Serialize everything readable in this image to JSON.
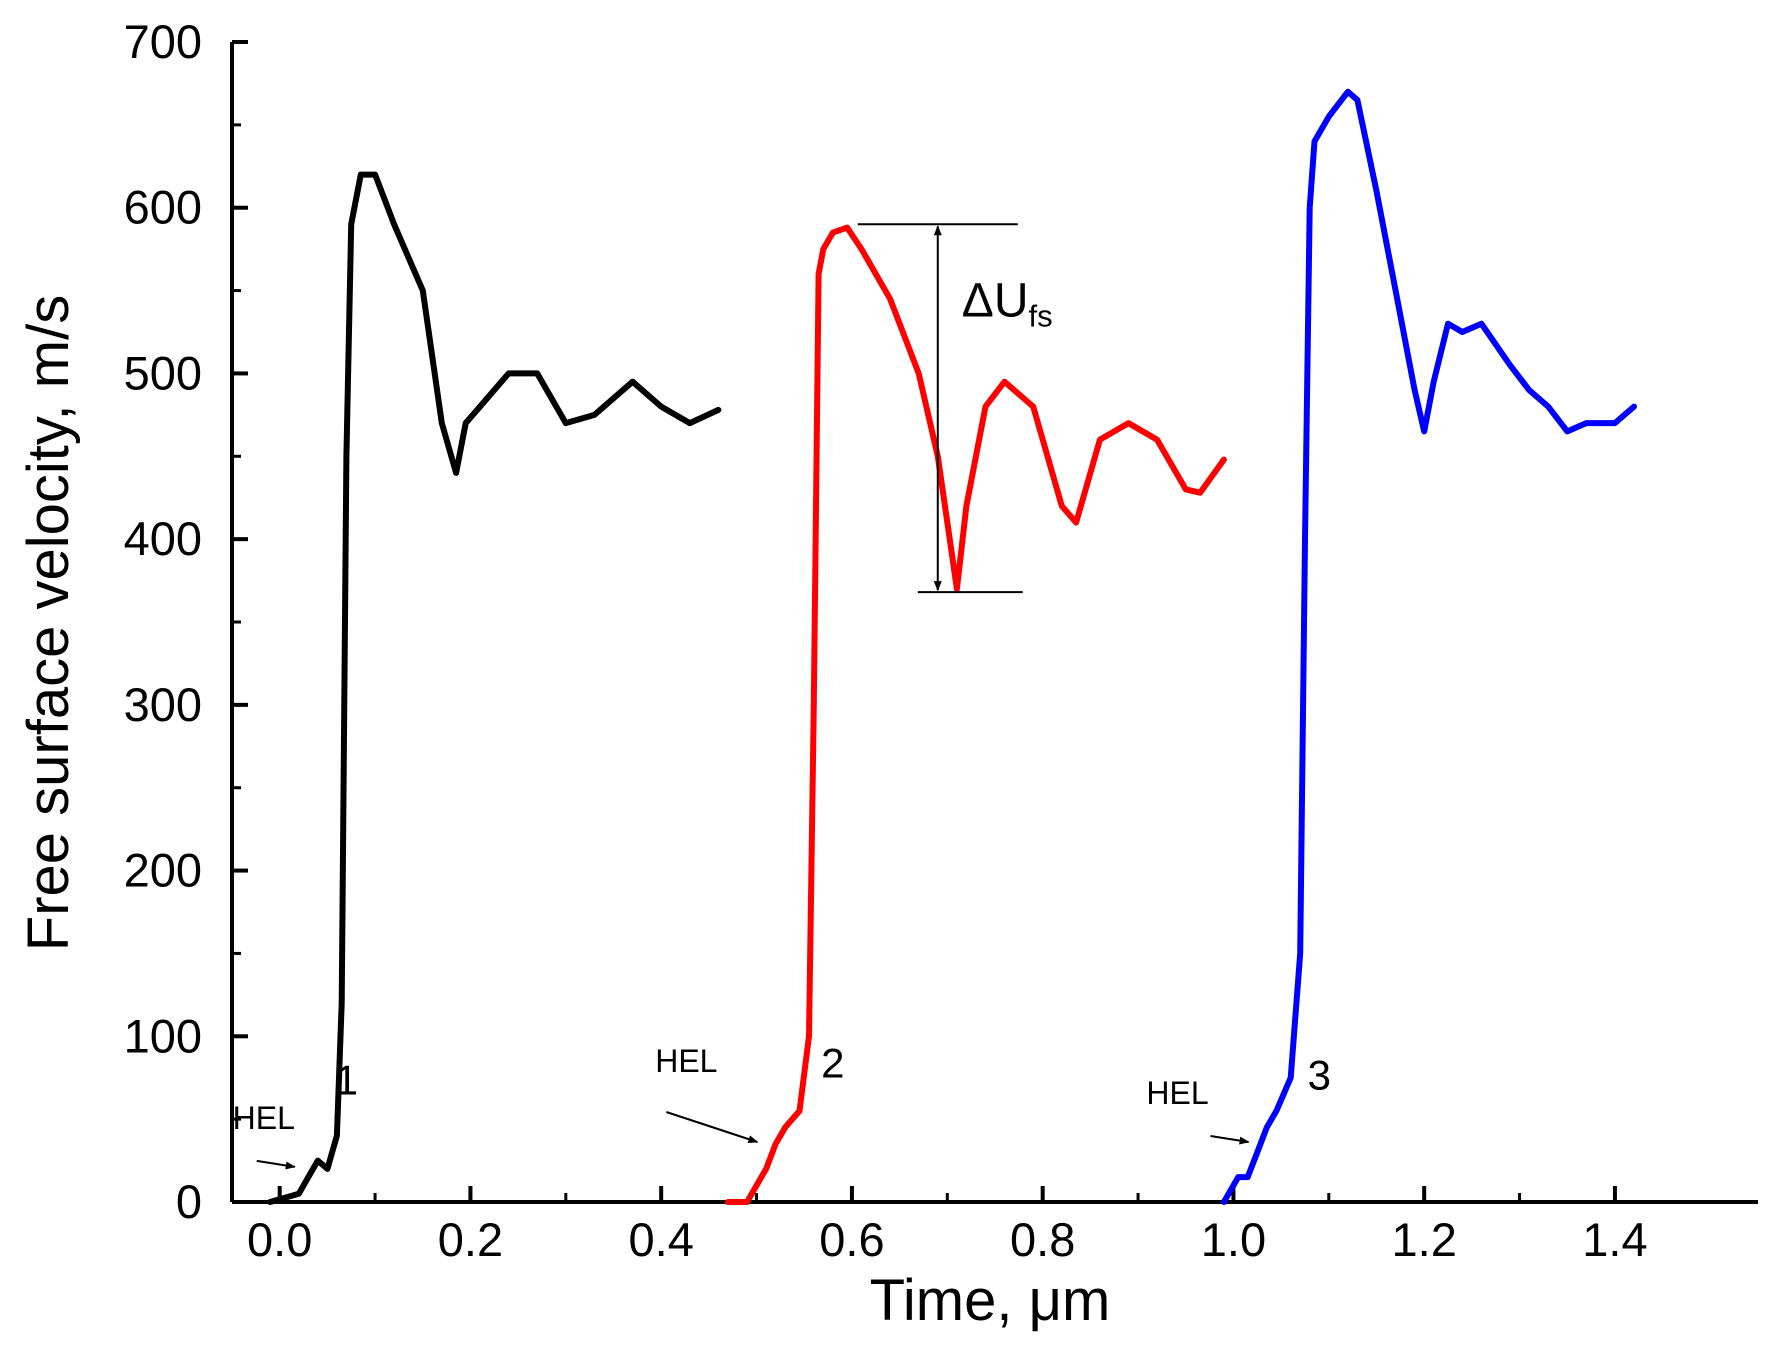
{
  "chart_data": {
    "type": "line",
    "title": "",
    "xlabel": "Time, μm",
    "ylabel": "Free surface velocity, m/s",
    "xlim": [
      -0.05,
      1.55
    ],
    "ylim": [
      0,
      700
    ],
    "xticks": [
      "0.0",
      "0.2",
      "0.4",
      "0.6",
      "0.8",
      "1.0",
      "1.2",
      "1.4"
    ],
    "xtick_values": [
      0.0,
      0.2,
      0.4,
      0.6,
      0.8,
      1.0,
      1.2,
      1.4
    ],
    "yticks": [
      "0",
      "100",
      "200",
      "300",
      "400",
      "500",
      "600",
      "700"
    ],
    "ytick_values": [
      0,
      100,
      200,
      300,
      400,
      500,
      600,
      700
    ],
    "grid": false,
    "series": [
      {
        "name": "1",
        "color": "#000000",
        "x": [
          -0.01,
          0.02,
          0.03,
          0.04,
          0.05,
          0.06,
          0.065,
          0.07,
          0.075,
          0.085,
          0.1,
          0.12,
          0.15,
          0.17,
          0.185,
          0.195,
          0.21,
          0.24,
          0.27,
          0.3,
          0.33,
          0.37,
          0.4,
          0.43,
          0.46
        ],
        "y": [
          0,
          5,
          15,
          25,
          20,
          40,
          120,
          450,
          590,
          620,
          620,
          590,
          550,
          470,
          440,
          470,
          480,
          500,
          500,
          470,
          475,
          495,
          480,
          470,
          478
        ]
      },
      {
        "name": "2",
        "color": "#ff0000",
        "x": [
          0.47,
          0.49,
          0.5,
          0.51,
          0.52,
          0.53,
          0.545,
          0.555,
          0.56,
          0.565,
          0.57,
          0.58,
          0.595,
          0.61,
          0.64,
          0.67,
          0.69,
          0.71,
          0.72,
          0.74,
          0.76,
          0.79,
          0.82,
          0.835,
          0.86,
          0.89,
          0.92,
          0.95,
          0.965,
          0.98,
          0.99
        ],
        "y": [
          0,
          0,
          10,
          20,
          35,
          45,
          55,
          100,
          300,
          560,
          575,
          585,
          588,
          575,
          545,
          500,
          450,
          370,
          420,
          480,
          495,
          480,
          420,
          410,
          460,
          470,
          460,
          430,
          428,
          440,
          448
        ]
      },
      {
        "name": "3",
        "color": "#0000ff",
        "x": [
          0.99,
          1.005,
          1.015,
          1.025,
          1.035,
          1.045,
          1.06,
          1.07,
          1.075,
          1.08,
          1.085,
          1.1,
          1.12,
          1.13,
          1.15,
          1.17,
          1.19,
          1.2,
          1.21,
          1.225,
          1.24,
          1.26,
          1.29,
          1.31,
          1.33,
          1.35,
          1.37,
          1.4,
          1.42
        ],
        "y": [
          0,
          15,
          15,
          30,
          45,
          55,
          75,
          150,
          400,
          600,
          640,
          655,
          670,
          665,
          610,
          550,
          490,
          465,
          495,
          530,
          525,
          530,
          505,
          490,
          480,
          465,
          470,
          470,
          480
        ]
      }
    ],
    "annotations": [
      {
        "text": "HEL",
        "curve": "1",
        "target": [
          0.02,
          20
        ]
      },
      {
        "text": "HEL",
        "curve": "2",
        "target": [
          0.505,
          35
        ]
      },
      {
        "text": "HEL",
        "curve": "3",
        "target": [
          1.02,
          35
        ]
      },
      {
        "text": "1",
        "position": [
          0.07,
          65
        ]
      },
      {
        "text": "2",
        "position": [
          0.58,
          75
        ]
      },
      {
        "text": "3",
        "position": [
          1.09,
          68
        ]
      },
      {
        "text": "ΔU",
        "subscript": "fs",
        "from": [
          0.69,
          590
        ],
        "to": [
          0.69,
          368
        ]
      }
    ]
  }
}
